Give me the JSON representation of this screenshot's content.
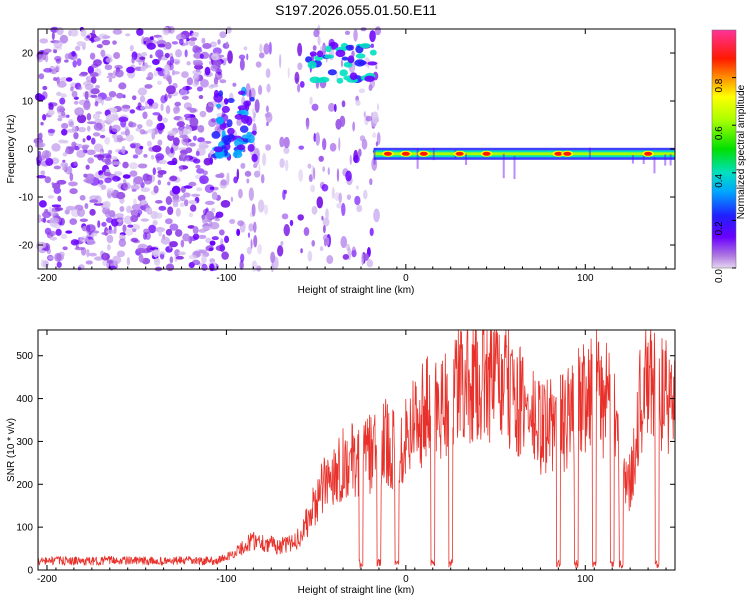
{
  "figure_title": "S197.2026.055.01.50.E11",
  "chart_data": [
    {
      "type": "heatmap",
      "title": "S197.2026.055.01.50.E11",
      "xlabel": "Height of straight line (km)",
      "ylabel": "Frequency (Hz)",
      "xlim": [
        -205,
        150
      ],
      "ylim": [
        -25,
        25
      ],
      "xticks": [
        -200,
        -100,
        0,
        100
      ],
      "xtick_labels": [
        "-200",
        "-100",
        "0",
        "100"
      ],
      "yticks": [
        -20,
        -10,
        0,
        10,
        20
      ],
      "ytick_labels": [
        "-20",
        "-10",
        "0",
        "10",
        "20"
      ],
      "colorbar": {
        "label": "Normalized spectral amplitude",
        "range": [
          0,
          1
        ],
        "ticks": [
          0.0,
          0.2,
          0.4,
          0.6,
          0.8
        ],
        "tick_labels": [
          "0.0",
          "0.2",
          "0.4",
          "0.6",
          "0.8"
        ]
      },
      "features": [
        {
          "name": "noise region",
          "x_range": [
            -205,
            -100
          ],
          "y_range": [
            -25,
            25
          ],
          "amplitude": 0.15
        },
        {
          "name": "low-height cluster",
          "x_center": -95,
          "y_center": 5,
          "amplitude": 0.25
        },
        {
          "name": "high-frequency echo",
          "x_range": [
            -55,
            -18
          ],
          "y_center": 18,
          "amplitude": 0.45
        },
        {
          "name": "main line",
          "x_range": [
            -18,
            150
          ],
          "y_center": -1,
          "amplitude": 0.85
        },
        {
          "name": "main line peaks",
          "x_values": [
            -10,
            0,
            10,
            30,
            45,
            85,
            90,
            135
          ],
          "amplitude": 1.0
        }
      ]
    },
    {
      "type": "line",
      "xlabel": "Height of straight line (km)",
      "ylabel": "SNR (10 * v/v)",
      "xlim": [
        -205,
        150
      ],
      "ylim": [
        0,
        560
      ],
      "xticks": [
        -200,
        -100,
        0,
        100
      ],
      "xtick_labels": [
        "-200",
        "-100",
        "0",
        "100"
      ],
      "yticks": [
        0,
        100,
        200,
        300,
        400,
        500
      ],
      "ytick_labels": [
        "0",
        "100",
        "200",
        "300",
        "400",
        "500"
      ],
      "color": "#e8312a",
      "series": [
        {
          "name": "SNR",
          "x": [
            -205,
            -195,
            -185,
            -175,
            -165,
            -155,
            -145,
            -135,
            -125,
            -115,
            -105,
            -100,
            -95,
            -90,
            -85,
            -80,
            -75,
            -70,
            -65,
            -60,
            -55,
            -50,
            -45,
            -40,
            -35,
            -30,
            -25,
            -20,
            -15,
            -10,
            -5,
            0,
            5,
            10,
            15,
            20,
            25,
            30,
            35,
            40,
            45,
            50,
            55,
            60,
            65,
            70,
            75,
            80,
            85,
            90,
            95,
            100,
            105,
            110,
            115,
            120,
            125,
            130,
            135,
            140,
            145,
            150
          ],
          "values": [
            20,
            22,
            21,
            20,
            23,
            22,
            21,
            20,
            22,
            21,
            22,
            30,
            40,
            55,
            70,
            65,
            60,
            55,
            60,
            75,
            110,
            160,
            200,
            230,
            250,
            255,
            260,
            270,
            285,
            300,
            270,
            320,
            350,
            370,
            380,
            390,
            410,
            430,
            440,
            450,
            455,
            445,
            430,
            410,
            380,
            355,
            330,
            340,
            340,
            350,
            380,
            420,
            440,
            400,
            380,
            220,
            200,
            380,
            440,
            420,
            400,
            390
          ],
          "dropouts_x": [
            -25,
            -15,
            -5,
            15,
            25,
            85,
            95,
            105,
            115,
            120,
            140
          ]
        }
      ]
    }
  ]
}
